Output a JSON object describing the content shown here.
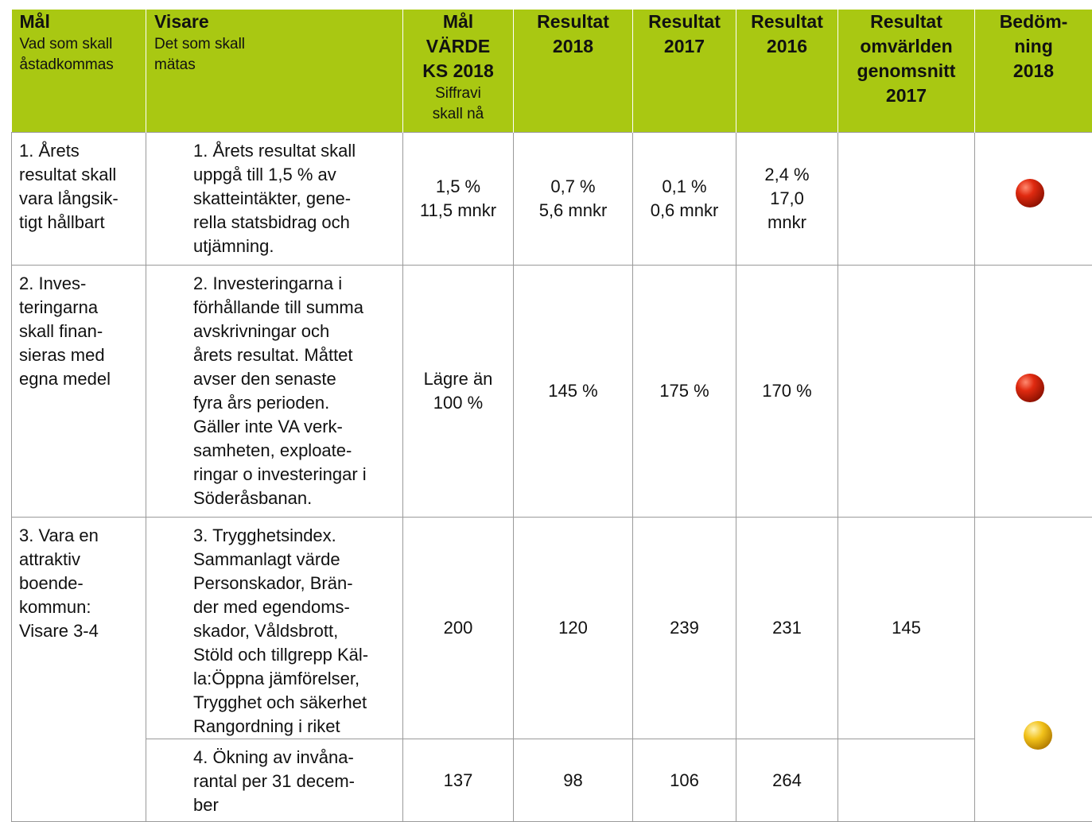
{
  "table": {
    "header": [
      {
        "title": "Mål",
        "subtitle": "Vad som skall\nåstadkommas"
      },
      {
        "title": "Visare",
        "subtitle": "Det som skall\nmätas"
      },
      {
        "title": "Mål\nVÄRDE\nKS 2018",
        "subtitle": "Siffravi\nskall nå"
      },
      {
        "title": "Resultat\n2018"
      },
      {
        "title": "Resultat\n2017"
      },
      {
        "title": "Resultat\n2016"
      },
      {
        "title": "Resultat\nomvärlden\ngenomsnitt\n2017"
      },
      {
        "title": "Bedöm-\nning\n2018"
      }
    ],
    "rows": [
      {
        "goal": "1. Årets\nresultat skall\nvara långsik-\ntigt hållbart",
        "indicators": [
          {
            "text": "1. Årets resultat skall\nuppgå till 1,5 % av\nskatteintäkter, gene-\nrella statsbidrag och\nutjämning.",
            "values": [
              "1,5 %\n11,5 mnkr",
              "0,7 %\n5,6 mnkr",
              "0,1 %\n0,6 mnkr",
              "2,4 %\n17,0\nmnkr"
            ]
          }
        ]
      },
      {
        "goal": "2. Inves-\nteringarna\nskall finan-\nsieras med\negna medel",
        "indicators": [
          {
            "text": "2. Investeringarna i\nförhållande till summa\navskrivningar och\nårets resultat. Måttet\navser den senaste\nfyra års perioden.\nGäller inte VA verk-\nsamheten, exploate-\nringar o investeringar i\nSöderåsbanan.",
            "values": [
              "Lägre än\n100 %",
              "145 %",
              "175 %",
              "170 %"
            ]
          }
        ]
      },
      {
        "goal": "3. Vara en\nattraktiv\nboende-\nkommun:\nVisare 3-4",
        "indicators": [
          {
            "text": "3. Trygghetsindex.\nSammanlagt värde\nPersonskador, Brän-\nder med egendoms-\nskador, Våldsbrott,\nStöld och tillgrepp Käl-\nla:Öppna jämförelser,\nTrygghet och säkerhet\nRangordning i riket",
            "values": [
              "200",
              "120",
              "239",
              "231"
            ],
            "benchmark": "145"
          },
          {
            "text": "4. Ökning av invåna-\nrantal per 31 decem-\nber",
            "values": [
              "137",
              "98",
              "106",
              "264"
            ]
          }
        ]
      }
    ]
  }
}
